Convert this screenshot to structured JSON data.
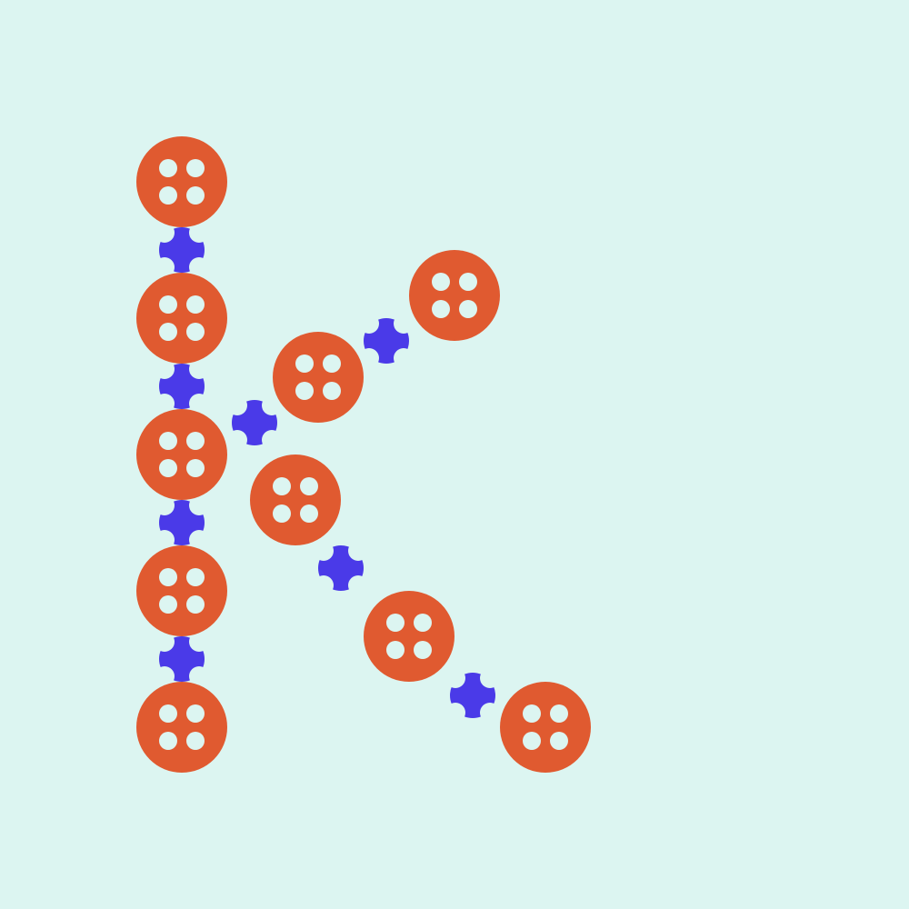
{
  "colors": {
    "background": "#dcf5f1",
    "button": "#e05a30",
    "button_hole": "#dcf5f1",
    "connector": "#4a3ae8"
  },
  "icons": {
    "button": "button-icon",
    "connector": "plus-connector-icon"
  },
  "counts": {
    "buttons": 10,
    "connectors": 8
  }
}
